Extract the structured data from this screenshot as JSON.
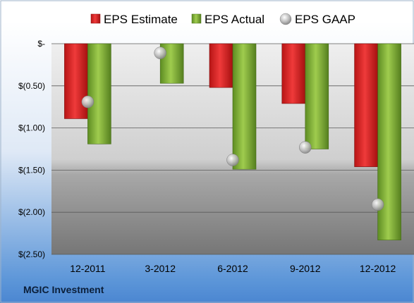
{
  "chart_data": {
    "type": "bar",
    "categories": [
      "12-2011",
      "3-2012",
      "6-2012",
      "9-2012",
      "12-2012"
    ],
    "series": [
      {
        "name": "EPS Estimate",
        "type": "bar",
        "values": [
          -0.89,
          null,
          -0.52,
          -0.71,
          -1.46
        ]
      },
      {
        "name": "EPS Actual",
        "type": "bar",
        "values": [
          -1.19,
          -0.47,
          -1.49,
          -1.25,
          -2.33
        ]
      },
      {
        "name": "EPS GAAP",
        "type": "scatter",
        "values": [
          -0.69,
          -0.11,
          -1.38,
          -1.23,
          -1.91
        ]
      }
    ],
    "yticks": [
      "$-",
      "$(0.50)",
      "$(1.00)",
      "$(1.50)",
      "$(2.00)",
      "$(2.50)"
    ],
    "ylim": [
      -2.5,
      0
    ],
    "grid": true,
    "legend": "top",
    "colors": {
      "estimate": "#e02020",
      "actual": "#86b33a",
      "gaap": "#b8b8b8"
    }
  },
  "footer": {
    "company": "MGIC Investment"
  }
}
